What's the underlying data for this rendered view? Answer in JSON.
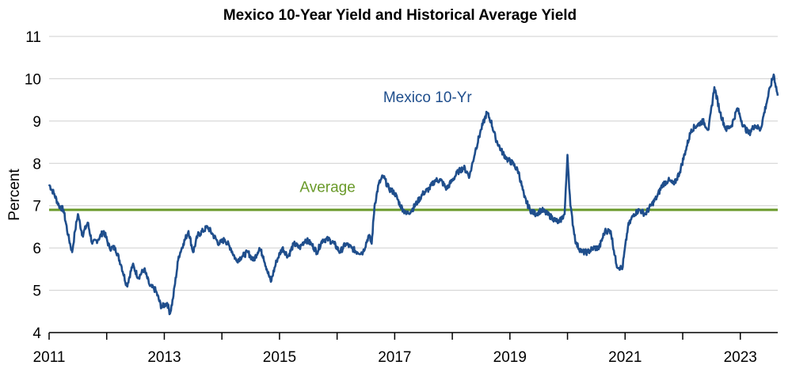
{
  "chart_data": {
    "type": "line",
    "title": "Mexico 10-Year Yield and Historical Average Yield",
    "ylabel": "Percent",
    "xlabel": "",
    "xlim": [
      2011,
      2023.65
    ],
    "ylim": [
      4,
      11
    ],
    "y_ticks": [
      "4",
      "5",
      "6",
      "7",
      "8",
      "9",
      "10",
      "11"
    ],
    "x_ticks": [
      "2011",
      "2013",
      "2015",
      "2017",
      "2019",
      "2021",
      "2023"
    ],
    "grid": "horizontal",
    "series": [
      {
        "name": "Mexico 10-Yr",
        "color": "#1f4e8c",
        "x": [
          2011.0,
          2011.08,
          2011.17,
          2011.25,
          2011.33,
          2011.4,
          2011.45,
          2011.5,
          2011.58,
          2011.67,
          2011.75,
          2011.85,
          2011.95,
          2012.05,
          2012.15,
          2012.25,
          2012.35,
          2012.45,
          2012.55,
          2012.65,
          2012.75,
          2012.85,
          2012.95,
          2013.05,
          2013.1,
          2013.15,
          2013.25,
          2013.33,
          2013.42,
          2013.5,
          2013.58,
          2013.67,
          2013.75,
          2013.85,
          2013.95,
          2014.05,
          2014.15,
          2014.25,
          2014.35,
          2014.45,
          2014.55,
          2014.65,
          2014.72,
          2014.78,
          2014.85,
          2014.95,
          2015.05,
          2015.15,
          2015.25,
          2015.35,
          2015.45,
          2015.55,
          2015.65,
          2015.75,
          2015.85,
          2015.95,
          2016.05,
          2016.15,
          2016.25,
          2016.35,
          2016.45,
          2016.55,
          2016.6,
          2016.65,
          2016.72,
          2016.8,
          2016.9,
          2017.0,
          2017.1,
          2017.2,
          2017.3,
          2017.4,
          2017.5,
          2017.6,
          2017.7,
          2017.8,
          2017.9,
          2018.0,
          2018.1,
          2018.2,
          2018.3,
          2018.4,
          2018.5,
          2018.6,
          2018.67,
          2018.75,
          2018.85,
          2018.95,
          2019.05,
          2019.15,
          2019.25,
          2019.35,
          2019.45,
          2019.55,
          2019.65,
          2019.75,
          2019.85,
          2019.95,
          2020.0,
          2020.05,
          2020.1,
          2020.15,
          2020.25,
          2020.35,
          2020.45,
          2020.55,
          2020.65,
          2020.75,
          2020.85,
          2020.95,
          2021.05,
          2021.15,
          2021.25,
          2021.35,
          2021.45,
          2021.55,
          2021.65,
          2021.75,
          2021.85,
          2021.95,
          2022.05,
          2022.15,
          2022.25,
          2022.35,
          2022.45,
          2022.55,
          2022.65,
          2022.75,
          2022.85,
          2022.95,
          2023.05,
          2023.15,
          2023.25,
          2023.35,
          2023.45,
          2023.52,
          2023.58,
          2023.65
        ],
        "values": [
          7.5,
          7.3,
          7.0,
          6.9,
          6.3,
          5.9,
          6.4,
          6.8,
          6.3,
          6.6,
          6.1,
          6.2,
          6.4,
          6.0,
          6.0,
          5.6,
          5.1,
          5.6,
          5.3,
          5.5,
          5.1,
          5.0,
          4.6,
          4.7,
          4.45,
          4.8,
          5.8,
          6.1,
          6.4,
          5.9,
          6.3,
          6.4,
          6.5,
          6.3,
          6.1,
          6.2,
          6.0,
          5.7,
          5.8,
          5.9,
          5.7,
          6.0,
          5.8,
          5.5,
          5.2,
          5.7,
          6.0,
          5.8,
          6.1,
          6.0,
          6.2,
          6.1,
          5.9,
          6.2,
          6.2,
          6.1,
          5.9,
          6.1,
          6.0,
          5.9,
          5.9,
          6.3,
          6.1,
          7.0,
          7.5,
          7.7,
          7.4,
          7.3,
          7.0,
          6.8,
          6.9,
          7.1,
          7.3,
          7.4,
          7.6,
          7.6,
          7.4,
          7.6,
          7.8,
          7.9,
          7.7,
          8.3,
          8.8,
          9.2,
          9.0,
          8.6,
          8.3,
          8.1,
          8.0,
          7.8,
          7.2,
          6.9,
          6.8,
          6.9,
          6.8,
          6.7,
          6.6,
          6.8,
          8.2,
          7.0,
          6.5,
          6.1,
          5.9,
          5.9,
          6.0,
          6.0,
          6.4,
          6.4,
          5.6,
          5.5,
          6.5,
          6.8,
          6.9,
          6.8,
          7.0,
          7.2,
          7.5,
          7.6,
          7.5,
          7.8,
          8.3,
          8.8,
          8.9,
          9.0,
          8.8,
          9.8,
          9.2,
          8.8,
          8.9,
          9.3,
          8.9,
          8.7,
          8.9,
          8.8,
          9.4,
          9.8,
          10.1,
          9.6
        ]
      }
    ],
    "average": {
      "name": "Average",
      "value": 6.9,
      "color": "#6a9a2a"
    },
    "annotations": [
      {
        "text": "Mexico 10-Yr",
        "x": 2016.8,
        "y": 9.45
      },
      {
        "text": "Average",
        "x": 2015.35,
        "y": 7.32
      }
    ]
  }
}
